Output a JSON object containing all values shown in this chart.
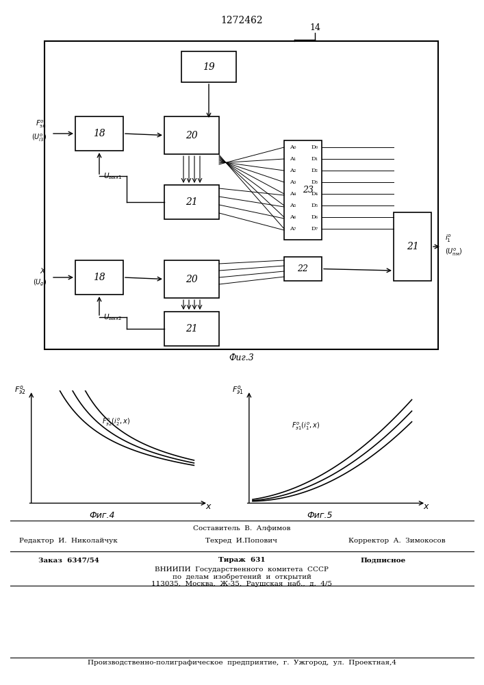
{
  "title_number": "1272462",
  "bg_color": "#ffffff",
  "fig_width": 7.07,
  "fig_height": 10.0,
  "footer_lines": [
    [
      "",
      "Составитель  В.  Алфимов",
      ""
    ],
    [
      "Редактор  И.  Николайчук",
      "Техред  И.Попович",
      "Корректор  А.  Зимокосов"
    ],
    [
      "Заказ  6347/54",
      "Тираж  631",
      "Подписное"
    ],
    [
      "",
      "ВНИИПИ  Государственного  комитета  СССР",
      ""
    ],
    [
      "",
      "по  делам  изобретений  и  открытий",
      ""
    ],
    [
      "",
      "113035,  Москва,  Ж-35,  Раушская  наб.,  д.  4/5",
      ""
    ],
    [
      "Производственно-полиграфическое  предприятие,  г.  Ужгород,  ул.  Проектная,4",
      "",
      ""
    ]
  ]
}
